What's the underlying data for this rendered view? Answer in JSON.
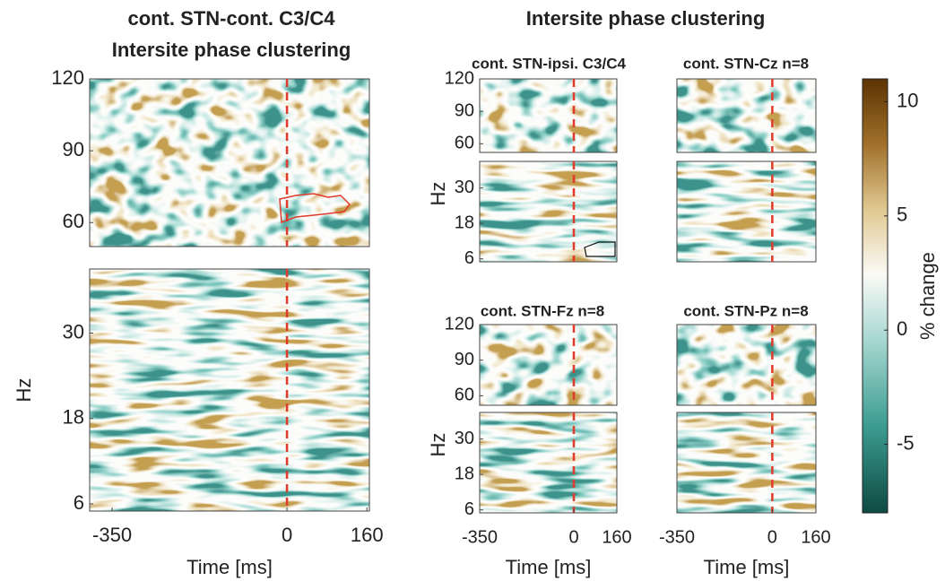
{
  "title": "Intersite phase clustering",
  "chart_data": [
    {
      "type": "heatmap",
      "title": "cont. STN-cont. C3/C4",
      "subtitle": "Intersite phase clustering",
      "xlabel": "Time [ms]",
      "ylabel": "Hz",
      "xlim": [
        -395,
        165
      ],
      "xticks": [
        -350,
        0,
        160
      ],
      "bands": [
        {
          "ylim": [
            50,
            120
          ],
          "yticks": [
            60,
            90,
            120
          ]
        },
        {
          "ylim": [
            5,
            39
          ],
          "yticks": [
            6,
            18,
            30
          ]
        }
      ]
    },
    {
      "type": "heatmap",
      "title": "cont. STN-ipsi. C3/C4",
      "ylabel": "Hz",
      "xlim": [
        -350,
        160
      ],
      "bands": [
        {
          "ylim": [
            52,
            120
          ],
          "yticks": [
            60,
            90,
            120
          ]
        },
        {
          "ylim": [
            5,
            39
          ],
          "yticks": [
            6,
            18,
            30
          ]
        }
      ]
    },
    {
      "type": "heatmap",
      "title": "cont. STN-Cz n=8",
      "xlim": [
        -350,
        160
      ],
      "bands": [
        {
          "ylim": [
            52,
            120
          ]
        },
        {
          "ylim": [
            5,
            39
          ]
        }
      ]
    },
    {
      "type": "heatmap",
      "title": "cont. STN-Fz n=8",
      "xlabel": "Time [ms]",
      "ylabel": "Hz",
      "xlim": [
        -350,
        160
      ],
      "xticks": [
        -350,
        0,
        160
      ],
      "bands": [
        {
          "ylim": [
            52,
            120
          ],
          "yticks": [
            60,
            90,
            120
          ]
        },
        {
          "ylim": [
            5,
            39
          ],
          "yticks": [
            6,
            18,
            30
          ]
        }
      ]
    },
    {
      "type": "heatmap",
      "title": "cont. STN-Pz n=8",
      "xlabel": "Time [ms]",
      "xlim": [
        -350,
        160
      ],
      "xticks": [
        -350,
        0,
        160
      ],
      "bands": [
        {
          "ylim": [
            52,
            120
          ]
        },
        {
          "ylim": [
            5,
            39
          ]
        }
      ]
    },
    {
      "type": "colorbar",
      "label": "% change",
      "ylim": [
        -8,
        11
      ],
      "yticks": [
        10,
        5,
        0,
        -5
      ]
    }
  ]
}
